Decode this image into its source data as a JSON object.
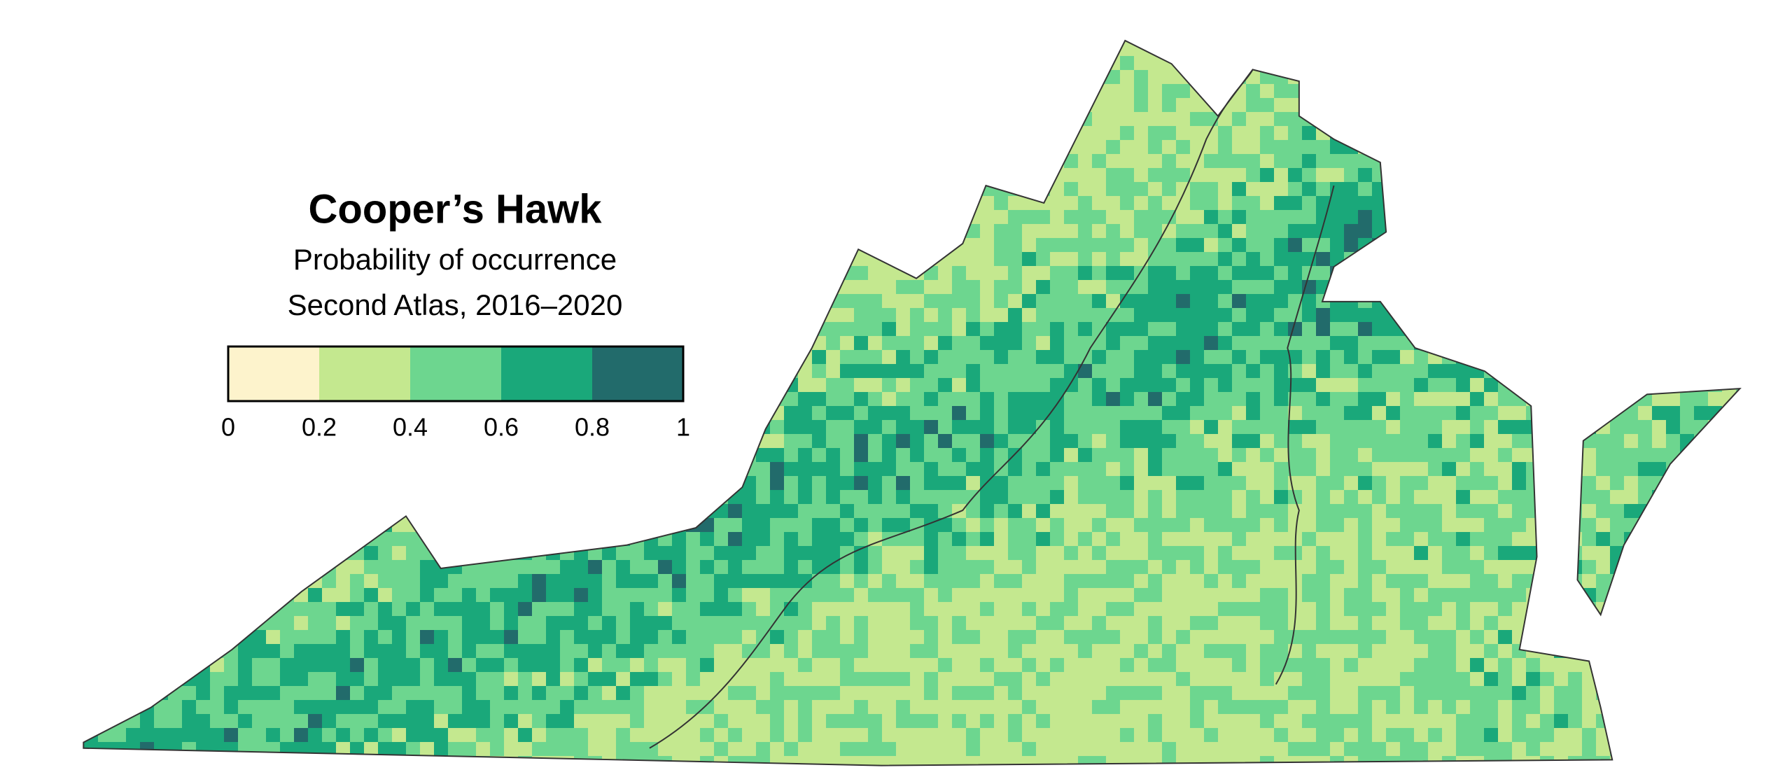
{
  "title": "Cooper’s Hawk",
  "subtitle": [
    "Probability of occurrence",
    "Second Atlas, 2016–2020"
  ],
  "legend": {
    "colors": [
      "#fdf3cc",
      "#c4e88f",
      "#6dd68f",
      "#1aa87a",
      "#226b6b"
    ],
    "ticks": [
      0,
      0.2,
      0.4,
      0.6,
      0.8,
      1
    ]
  }
}
